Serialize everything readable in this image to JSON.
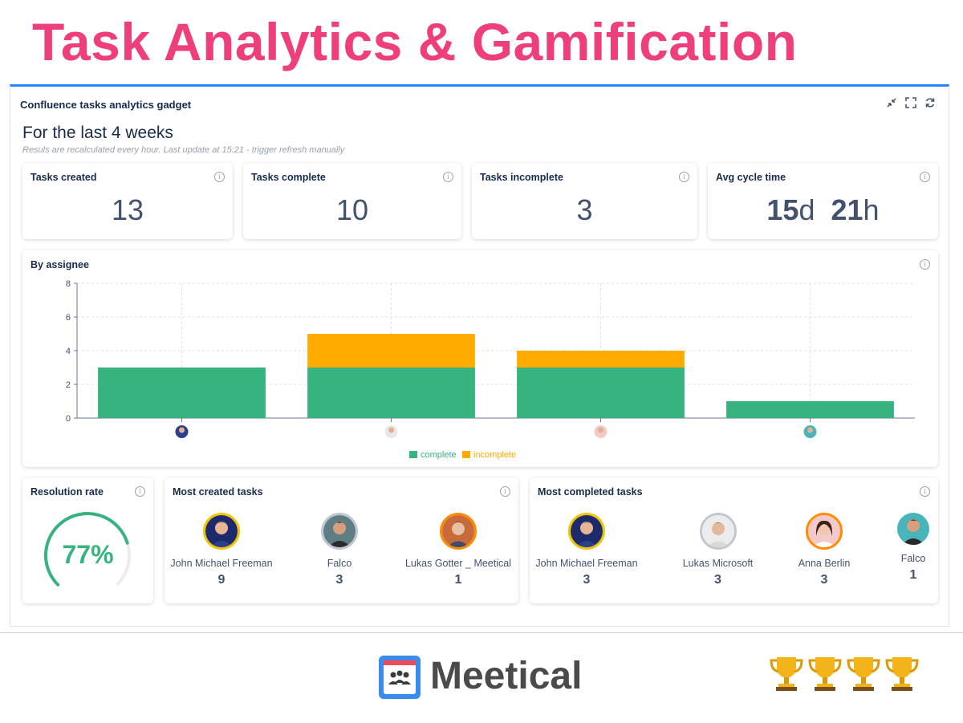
{
  "headline": "Task Analytics & Gamification",
  "gadget": {
    "title": "Confluence tasks analytics gadget",
    "period": "For the last 4 weeks",
    "note": "Resuls are recalculated every hour. Last update at 15:21 - trigger refresh manually"
  },
  "stats": {
    "created": {
      "label": "Tasks created",
      "value": "13"
    },
    "complete": {
      "label": "Tasks complete",
      "value": "10"
    },
    "incomplete": {
      "label": "Tasks incomplete",
      "value": "3"
    },
    "cycle": {
      "label": "Avg cycle time",
      "days": "15",
      "days_unit": "d",
      "hours": "21",
      "hours_unit": "h"
    }
  },
  "assignee_chart": {
    "title": "By assignee",
    "chart_data": {
      "type": "bar",
      "stacked": true,
      "categories": [
        "",
        "",
        "",
        ""
      ],
      "series": [
        {
          "name": "complete",
          "values": [
            3,
            3,
            3,
            1
          ],
          "color": "#36b37e"
        },
        {
          "name": "incomplete",
          "values": [
            0,
            2,
            1,
            0
          ],
          "color": "#ffab00"
        }
      ],
      "ylim": [
        0,
        8
      ],
      "yticks": [
        "0",
        "2",
        "4",
        "6",
        "8"
      ],
      "grid": true,
      "legend": "bottom"
    }
  },
  "resolution": {
    "label": "Resolution rate",
    "value": "77%",
    "fraction": 0.77,
    "color": "#36b37e"
  },
  "most_created": {
    "label": "Most created tasks",
    "people": [
      {
        "name": "John Michael Freeman",
        "count": "9"
      },
      {
        "name": "Falco",
        "count": "3"
      },
      {
        "name": "Lukas Gotter _ Meetical",
        "count": "1"
      }
    ]
  },
  "most_completed": {
    "label": "Most completed tasks",
    "people": [
      {
        "name": "John Michael Freeman",
        "count": "3"
      },
      {
        "name": "Lukas Microsoft",
        "count": "3"
      },
      {
        "name": "Anna Berlin",
        "count": "3"
      },
      {
        "name": "Falco",
        "count": "1"
      }
    ]
  },
  "footer": {
    "logo": "Meetical"
  },
  "icons": [
    "minimize-icon",
    "fullscreen-icon",
    "refresh-icon",
    "info-icon",
    "trophy-icon"
  ]
}
